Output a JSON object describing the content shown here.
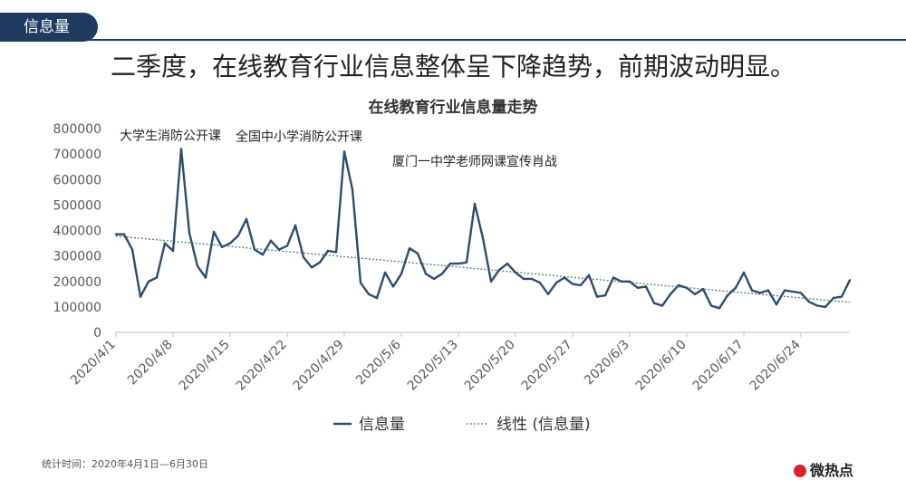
{
  "header": {
    "tag": "信息量",
    "headline": "二季度，在线教育行业信息整体呈下降趋势，前期波动明显。"
  },
  "chart_data": {
    "type": "line",
    "title": "在线教育行业信息量走势",
    "x_start": "2020/4/1",
    "x": [
      "2020/4/1",
      "2020/4/2",
      "2020/4/3",
      "2020/4/4",
      "2020/4/5",
      "2020/4/6",
      "2020/4/7",
      "2020/4/8",
      "2020/4/9",
      "2020/4/10",
      "2020/4/11",
      "2020/4/12",
      "2020/4/13",
      "2020/4/14",
      "2020/4/15",
      "2020/4/16",
      "2020/4/17",
      "2020/4/18",
      "2020/4/19",
      "2020/4/20",
      "2020/4/21",
      "2020/4/22",
      "2020/4/23",
      "2020/4/24",
      "2020/4/25",
      "2020/4/26",
      "2020/4/27",
      "2020/4/28",
      "2020/4/29",
      "2020/4/30",
      "2020/5/1",
      "2020/5/2",
      "2020/5/3",
      "2020/5/4",
      "2020/5/5",
      "2020/5/6",
      "2020/5/7",
      "2020/5/8",
      "2020/5/9",
      "2020/5/10",
      "2020/5/11",
      "2020/5/12",
      "2020/5/13",
      "2020/5/14",
      "2020/5/15",
      "2020/5/16",
      "2020/5/17",
      "2020/5/18",
      "2020/5/19",
      "2020/5/20",
      "2020/5/21",
      "2020/5/22",
      "2020/5/23",
      "2020/5/24",
      "2020/5/25",
      "2020/5/26",
      "2020/5/27",
      "2020/5/28",
      "2020/5/29",
      "2020/5/30",
      "2020/5/31",
      "2020/6/1",
      "2020/6/2",
      "2020/6/3",
      "2020/6/4",
      "2020/6/5",
      "2020/6/6",
      "2020/6/7",
      "2020/6/8",
      "2020/6/9",
      "2020/6/10",
      "2020/6/11",
      "2020/6/12",
      "2020/6/13",
      "2020/6/14",
      "2020/6/15",
      "2020/6/16",
      "2020/6/17",
      "2020/6/18",
      "2020/6/19",
      "2020/6/20",
      "2020/6/21",
      "2020/6/22",
      "2020/6/23",
      "2020/6/24",
      "2020/6/25",
      "2020/6/26",
      "2020/6/27",
      "2020/6/28",
      "2020/6/29",
      "2020/6/30"
    ],
    "series": [
      {
        "name": "信息量",
        "color": "#2e4d6e",
        "values": [
          385000,
          385000,
          325000,
          140000,
          200000,
          215000,
          350000,
          320000,
          720000,
          390000,
          260000,
          215000,
          395000,
          335000,
          350000,
          380000,
          445000,
          325000,
          305000,
          360000,
          325000,
          340000,
          420000,
          295000,
          255000,
          275000,
          320000,
          315000,
          710000,
          560000,
          195000,
          150000,
          135000,
          235000,
          180000,
          230000,
          330000,
          310000,
          230000,
          210000,
          230000,
          270000,
          270000,
          275000,
          505000,
          370000,
          200000,
          245000,
          270000,
          235000,
          210000,
          210000,
          195000,
          150000,
          195000,
          215000,
          190000,
          185000,
          225000,
          140000,
          145000,
          215000,
          200000,
          200000,
          175000,
          180000,
          115000,
          105000,
          150000,
          185000,
          175000,
          150000,
          170000,
          105000,
          95000,
          145000,
          175000,
          235000,
          165000,
          155000,
          165000,
          110000,
          165000,
          160000,
          155000,
          120000,
          105000,
          100000,
          135000,
          140000,
          205000
        ]
      }
    ],
    "trendline": {
      "name": "线性 (信息量)",
      "start": 378000,
      "end": 118000,
      "style": "dotted",
      "color": "#4f7f6f"
    },
    "ylim": [
      0,
      800000
    ],
    "yticks": [
      "0",
      "100000",
      "200000",
      "300000",
      "400000",
      "500000",
      "600000",
      "700000",
      "800000"
    ],
    "xticks": [
      {
        "label": "2020/4/1",
        "index": 0
      },
      {
        "label": "2020/4/8",
        "index": 7
      },
      {
        "label": "2020/4/15",
        "index": 14
      },
      {
        "label": "2020/4/22",
        "index": 21
      },
      {
        "label": "2020/4/29",
        "index": 28
      },
      {
        "label": "2020/5/6",
        "index": 35
      },
      {
        "label": "2020/5/13",
        "index": 42
      },
      {
        "label": "2020/5/20",
        "index": 49
      },
      {
        "label": "2020/5/27",
        "index": 56
      },
      {
        "label": "2020/6/3",
        "index": 63
      },
      {
        "label": "2020/6/10",
        "index": 70
      },
      {
        "label": "2020/6/17",
        "index": 77
      },
      {
        "label": "2020/6/24",
        "index": 84
      }
    ],
    "annotations": [
      {
        "text": "大学生消防公开课",
        "x": "2020/4/9",
        "y": 720000
      },
      {
        "text": "全国中小学消防公开课",
        "x": "2020/4/29",
        "y": 710000
      },
      {
        "text": "厦门一中学老师网课宣传肖战",
        "x": "2020/5/15",
        "y": 505000
      }
    ],
    "grid": false,
    "legend": "bottom"
  },
  "footer": {
    "note": "统计时间：2020年4月1日—6月30日",
    "logo": "微热点"
  }
}
